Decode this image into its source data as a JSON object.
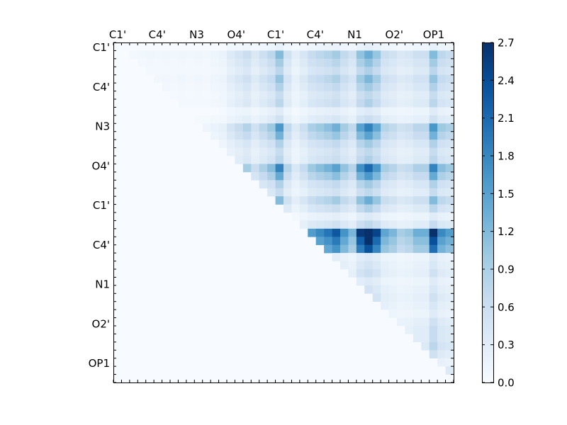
{
  "chart_data": {
    "type": "heatmap",
    "title": "",
    "xlabel": "",
    "ylabel": "",
    "n_cells": 42,
    "x_tick_labels": [
      "C1'",
      "C4'",
      "N3",
      "O4'",
      "C1'",
      "C4'",
      "N1",
      "O2'",
      "OP1"
    ],
    "y_tick_labels": [
      "C1'",
      "C4'",
      "N3",
      "O4'",
      "C1'",
      "C4'",
      "N1",
      "O2'",
      "OP1"
    ],
    "colorbar": {
      "ticks": [
        "0.0",
        "0.3",
        "0.6",
        "0.9",
        "1.2",
        "1.5",
        "1.8",
        "2.1",
        "2.4",
        "2.7"
      ],
      "range": [
        0,
        2.7
      ],
      "colormap": "Blues",
      "colors": [
        "#f7fbff",
        "#deebf7",
        "#c6dbef",
        "#9ecae1",
        "#6baed6",
        "#4292c6",
        "#2171b5",
        "#08519c",
        "#08306b"
      ]
    },
    "grid": false,
    "structure": "upper-triangular (values only at column >= row)",
    "row_profile": [
      0.1,
      0.55,
      0.45,
      0.35,
      0.5,
      0.4,
      0.3,
      0.35,
      0.15,
      0.25,
      0.75,
      0.6,
      0.4,
      0.3,
      0.35,
      0.85,
      0.65,
      0.4,
      0.3,
      0.55,
      0.35,
      0.15,
      0.3,
      1.3,
      1.1,
      0.95,
      0.15,
      0.2,
      0.25,
      0.15,
      0.2,
      0.25,
      0.2,
      0.15,
      0.25,
      0.3,
      0.3,
      0.35,
      0.25,
      0.15,
      0.3,
      0.1
    ],
    "col_profile": [
      0.05,
      0.05,
      0.08,
      0.1,
      0.12,
      0.1,
      0.12,
      0.1,
      0.12,
      0.1,
      0.12,
      0.1,
      0.15,
      0.2,
      0.4,
      0.55,
      0.7,
      0.45,
      0.65,
      0.85,
      1.35,
      0.6,
      0.3,
      0.5,
      0.75,
      0.85,
      0.95,
      1.1,
      0.8,
      0.6,
      1.25,
      1.55,
      1.2,
      0.7,
      0.6,
      0.45,
      0.5,
      0.65,
      0.65,
      1.35,
      0.85,
      0.75
    ]
  }
}
